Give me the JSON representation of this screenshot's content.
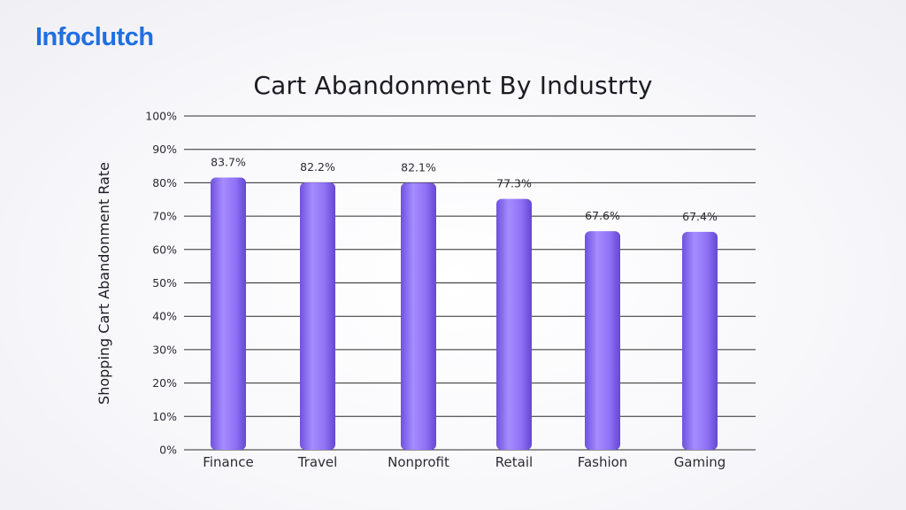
{
  "brand": {
    "logo_text": "Infoclutch",
    "color": "#1f6fe0"
  },
  "chart_data": {
    "type": "bar",
    "title": "Cart Abandonment By Industrty",
    "xlabel": "",
    "ylabel": "Shopping Cart Abandonment Rate",
    "categories": [
      "Finance",
      "Travel",
      "Nonprofit",
      "Retail",
      "Fashion",
      "Gaming"
    ],
    "values": [
      83.7,
      82.2,
      82.1,
      77.3,
      67.6,
      67.4
    ],
    "value_labels": [
      "83.7%",
      "82.2%",
      "82.1%",
      "77.3%",
      "67.6%",
      "67.4%"
    ],
    "ylim": [
      0,
      100
    ],
    "yticks": [
      0,
      10,
      20,
      30,
      40,
      50,
      60,
      70,
      80,
      90,
      100
    ],
    "ytick_labels": [
      "0%",
      "10%",
      "20%",
      "30%",
      "40%",
      "50%",
      "60%",
      "70%",
      "80%",
      "90%",
      "100%"
    ],
    "grid": true,
    "bar_color": "#8a6cf2"
  }
}
